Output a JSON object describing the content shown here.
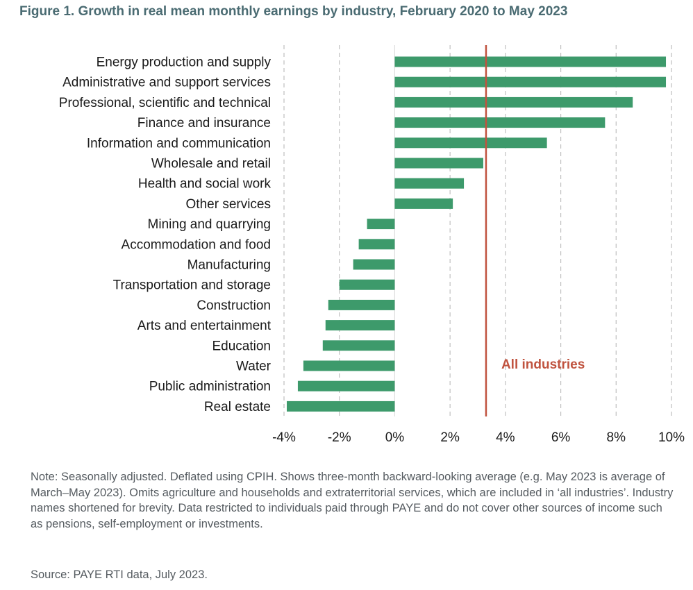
{
  "figure": {
    "title": "Figure 1. Growth in real mean monthly earnings by industry, February 2020 to May 2023",
    "note": "Note: Seasonally adjusted. Deflated using CPIH. Shows three-month backward-looking average (e.g. May 2023 is average of March–May 2023). Omits agriculture and households and extraterritorial services, which are included in ‘all industries’. Industry names shortened for brevity. Data restricted to individuals paid through PAYE and do not cover other sources of income such as pensions, self-employment or investments.",
    "source": "Source: PAYE RTI data, July 2023."
  },
  "colors": {
    "bar": "#3d9a6b",
    "reference": "#c0533f",
    "grid": "#bfbfbf",
    "text": "#1a1a1a"
  },
  "chart_data": {
    "type": "bar",
    "orientation": "horizontal",
    "title": "Figure 1. Growth in real mean monthly earnings by industry, February 2020 to May 2023",
    "xlabel": "",
    "ylabel": "",
    "xlim": [
      -4,
      10
    ],
    "xticks": [
      -4,
      -2,
      0,
      2,
      4,
      6,
      8,
      10
    ],
    "tick_format": "{v}%",
    "grid": "vertical dashed",
    "categories": [
      "Energy production and supply",
      "Administrative and support services",
      "Professional, scientific and technical",
      "Finance and insurance",
      "Information and communication",
      "Wholesale and retail",
      "Health and social work",
      "Other services",
      "Mining and quarrying",
      "Accommodation and food",
      "Manufacturing",
      "Transportation and storage",
      "Construction",
      "Arts and entertainment",
      "Education",
      "Water",
      "Public administration",
      "Real estate"
    ],
    "values": [
      9.8,
      9.8,
      8.6,
      7.6,
      5.5,
      3.2,
      2.5,
      2.1,
      -1.0,
      -1.3,
      -1.5,
      -2.0,
      -2.4,
      -2.5,
      -2.6,
      -3.3,
      -3.5,
      -3.9
    ],
    "reference_line": {
      "value": 3.3,
      "label": "All industries"
    }
  }
}
